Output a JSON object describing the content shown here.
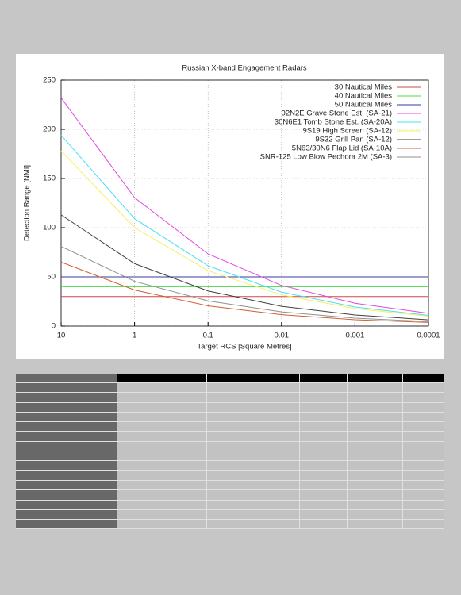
{
  "chart_data": {
    "type": "line",
    "title": "Russian X-band Engagement Radars",
    "x_label": "Target RCS [Square Metres]",
    "y_label": "Detection Range [NMI]",
    "x": [
      10,
      1,
      0.1,
      0.01,
      0.001,
      0.0001
    ],
    "xlim": [
      10,
      0.0001
    ],
    "xticks": [
      10,
      1,
      0.1,
      0.01,
      0.001,
      0.0001
    ],
    "xlog": true,
    "ylim": [
      0,
      250
    ],
    "yticks": [
      0,
      50,
      100,
      150,
      200,
      250
    ],
    "grid": true,
    "legend": "top-right",
    "series": [
      {
        "name": "30 Nautical Miles",
        "color": "#d04848",
        "values": [
          30,
          30,
          30,
          30,
          30,
          30
        ]
      },
      {
        "name": "40 Nautical Miles",
        "color": "#48d848",
        "values": [
          40,
          40,
          40,
          40,
          40,
          40
        ]
      },
      {
        "name": "50 Nautical Miles",
        "color": "#3838a0",
        "values": [
          50,
          50,
          50,
          50,
          50,
          50
        ]
      },
      {
        "name": "92N2E Grave Stone Est. (SA-21)",
        "color": "#e048e0",
        "values": [
          232,
          130.5,
          73.4,
          41.3,
          23.2,
          13.0
        ]
      },
      {
        "name": "30N6E1 Tomb Stone Est. (SA-20A)",
        "color": "#48e0f0",
        "values": [
          194,
          109.1,
          61.3,
          34.5,
          19.4,
          10.9
        ]
      },
      {
        "name": "9S19 High Screen (SA-12)",
        "color": "#f4f060",
        "values": [
          178,
          100.1,
          56.3,
          31.7,
          17.8,
          10.0
        ]
      },
      {
        "name": "9S32 Grill Pan (SA-12)",
        "color": "#404040",
        "values": [
          113,
          63.5,
          35.7,
          20.1,
          11.3,
          6.4
        ]
      },
      {
        "name": "5N63/30N6 Flap Lid (SA-10A)",
        "color": "#d06030",
        "values": [
          65,
          36.6,
          20.6,
          11.6,
          6.5,
          3.7
        ]
      },
      {
        "name": "SNR-125 Low Blow Pechora 2M (SA-3)",
        "color": "#909090",
        "values": [
          81,
          45.5,
          25.6,
          14.4,
          8.1,
          4.6
        ]
      }
    ]
  }
}
